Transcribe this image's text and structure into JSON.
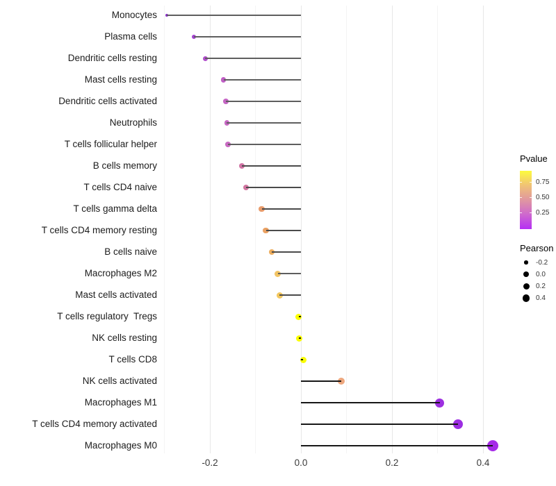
{
  "figure": {
    "background": "#ffffff"
  },
  "chart_data": {
    "type": "scatter",
    "subtype": "lollipop",
    "orientation": "horizontal",
    "title": "",
    "xlabel": "",
    "ylabel": "",
    "grid": "major-and-minor-vertical",
    "x_axis": {
      "range": [
        -0.3008,
        0.4351
      ],
      "major_ticks": [
        -0.2,
        0.0,
        0.2,
        0.4
      ],
      "major_tick_labels": [
        "-0.2",
        "0.0",
        "0.2",
        "0.4"
      ],
      "minor_ticks": [
        -0.3,
        -0.1,
        0.1,
        0.3
      ]
    },
    "points": [
      {
        "label": "Monocytes",
        "pearson": -0.295,
        "dot_color": "#8B2ACE",
        "dot_size": 4,
        "line_color": "#5e5e5e",
        "line_width": 2
      },
      {
        "label": "Plasma cells",
        "pearson": -0.235,
        "dot_color": "#A442D1",
        "dot_size": 6.5,
        "line_color": "#5e5e5e",
        "line_width": 2
      },
      {
        "label": "Dendritic cells resting",
        "pearson": -0.21,
        "dot_color": "#B14ECC",
        "dot_size": 7,
        "line_color": "#5e5e5e",
        "line_width": 2
      },
      {
        "label": "Mast cells resting",
        "pearson": -0.17,
        "dot_color": "#C05FC5",
        "dot_size": 7.5,
        "line_color": "#5e5e5e",
        "line_width": 2
      },
      {
        "label": "Dendritic cells activated",
        "pearson": -0.165,
        "dot_color": "#C566C4",
        "dot_size": 7.5,
        "line_color": "#5e5e5e",
        "line_width": 2
      },
      {
        "label": "Neutrophils",
        "pearson": -0.163,
        "dot_color": "#C768C3",
        "dot_size": 7.5,
        "line_color": "#5e5e5e",
        "line_width": 2
      },
      {
        "label": "T cells follicular helper",
        "pearson": -0.16,
        "dot_color": "#C96BC2",
        "dot_size": 7.5,
        "line_color": "#5e5e5e",
        "line_width": 2
      },
      {
        "label": "B cells memory",
        "pearson": -0.13,
        "dot_color": "#D073A4",
        "dot_size": 8,
        "line_color": "#4a4a4a",
        "line_width": 1.8
      },
      {
        "label": "T cells CD4 naive",
        "pearson": -0.12,
        "dot_color": "#D276A1",
        "dot_size": 8,
        "line_color": "#4a4a4a",
        "line_width": 1.8
      },
      {
        "label": "T cells gamma delta",
        "pearson": -0.086,
        "dot_color": "#E89B6B",
        "dot_size": 8.5,
        "line_color": "#4a4a4a",
        "line_width": 1.8
      },
      {
        "label": "T cells CD4 memory resting",
        "pearson": -0.077,
        "dot_color": "#EAA163",
        "dot_size": 8.5,
        "line_color": "#4a4a4a",
        "line_width": 1.8
      },
      {
        "label": "B cells naive",
        "pearson": -0.064,
        "dot_color": "#EDAD5C",
        "dot_size": 8.5,
        "line_color": "#4a4a4a",
        "line_width": 1.8
      },
      {
        "label": "Macrophages M2",
        "pearson": -0.051,
        "dot_color": "#F2C464",
        "dot_size": 9,
        "line_color": "#5e5e5e",
        "line_width": 2
      },
      {
        "label": "Mast cells activated",
        "pearson": -0.047,
        "dot_color": "#F3C75E",
        "dot_size": 9,
        "line_color": "#4a4a4a",
        "line_width": 1.8
      },
      {
        "label": "T cells regulatory  Tregs",
        "pearson": -0.005,
        "dot_color": "#FBFE00",
        "dot_size": 9,
        "line_color": "#161616",
        "line_width": 1.6
      },
      {
        "label": "NK cells resting",
        "pearson": -0.004,
        "dot_color": "#FBFE00",
        "dot_size": 9,
        "line_color": "#161616",
        "line_width": 1.6
      },
      {
        "label": "T cells CD8",
        "pearson": 0.005,
        "dot_color": "#F9FC00",
        "dot_size": 9,
        "line_color": "#161616",
        "line_width": 1.6
      },
      {
        "label": "NK cells activated",
        "pearson": 0.089,
        "dot_color": "#EDA77E",
        "dot_size": 10,
        "line_color": "#161616",
        "line_width": 1.6
      },
      {
        "label": "Macrophages M1",
        "pearson": 0.305,
        "dot_color": "#9D2FE0",
        "dot_size": 13,
        "line_color": "#161616",
        "line_width": 1.6
      },
      {
        "label": "T cells CD4 memory activated",
        "pearson": 0.345,
        "dot_color": "#9C2DE2",
        "dot_size": 14,
        "line_color": "#161616",
        "line_width": 1.6
      },
      {
        "label": "Macrophages M0",
        "pearson": 0.422,
        "dot_color": "#A62BE8",
        "dot_size": 16,
        "line_color": "#161616",
        "line_width": 1.6
      }
    ],
    "legend_position": "right"
  },
  "legend": {
    "pvalue": {
      "title": "Pvalue",
      "gradient_stops_bottom_to_top": [
        "#B52FF4",
        "#CE68CE",
        "#E097A0",
        "#F0C276",
        "#FDFB3E"
      ],
      "ticks": [
        {
          "label": "0.75",
          "pos_from_top": 0.2
        },
        {
          "label": "0.50",
          "pos_from_top": 0.46
        },
        {
          "label": "0.25",
          "pos_from_top": 0.726
        }
      ]
    },
    "pearson": {
      "title": "Pearson",
      "dot_color": "#000000",
      "items": [
        {
          "label": "-0.2",
          "size": 5.5
        },
        {
          "label": "0.0",
          "size": 8
        },
        {
          "label": "0.2",
          "size": 9
        },
        {
          "label": "0.4",
          "size": 10.5
        }
      ]
    }
  }
}
